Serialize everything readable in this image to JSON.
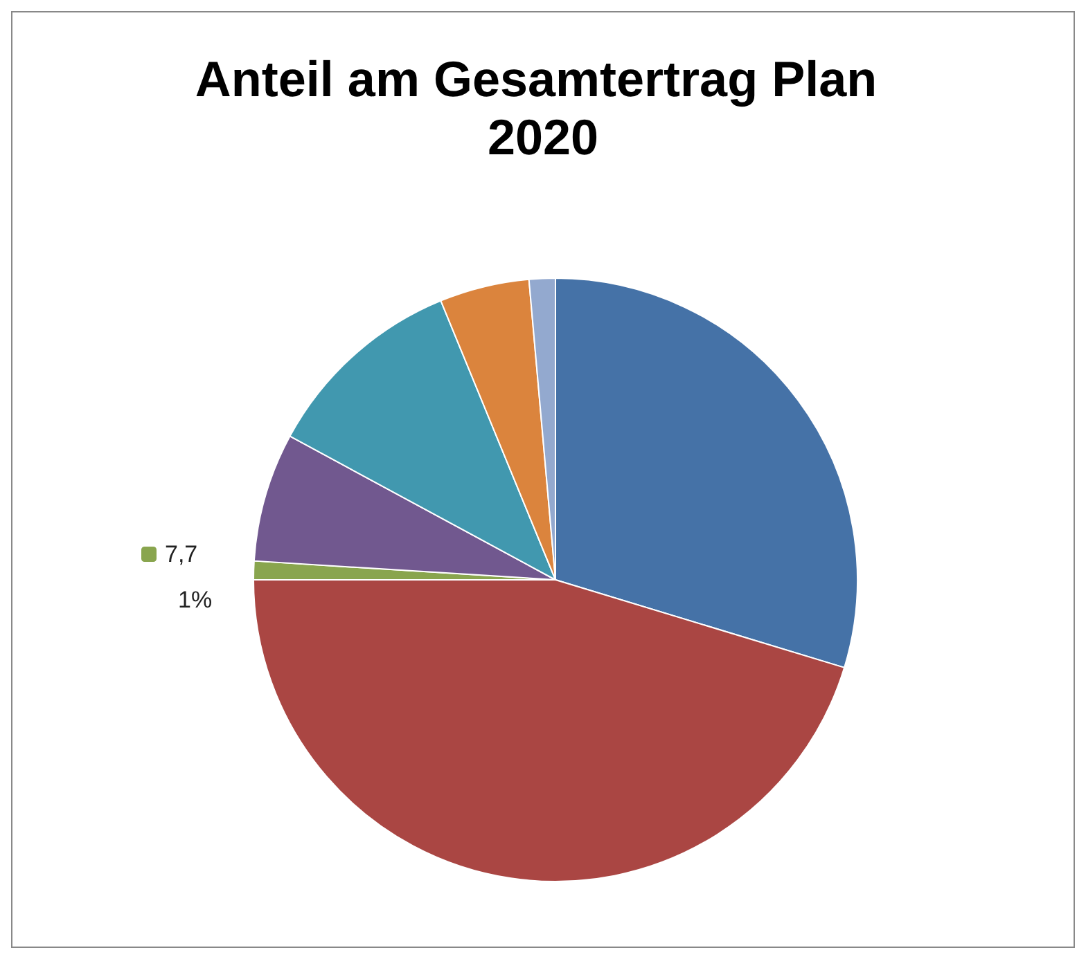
{
  "chart_data": {
    "type": "pie",
    "title": "Anteil am Gesamtertrag Plan 2020",
    "categories": [
      null,
      null,
      "7,7",
      null,
      null,
      null,
      null
    ],
    "values": [
      29.7,
      45.3,
      1,
      6.9,
      10.9,
      4.8,
      1.4
    ],
    "value_labels": [
      null,
      null,
      "1%",
      null,
      null,
      null,
      null
    ],
    "colors": [
      "#4572a7",
      "#aa4643",
      "#89a54e",
      "#71588f",
      "#4198af",
      "#db843d",
      "#93a9cf"
    ],
    "legend": "left"
  }
}
